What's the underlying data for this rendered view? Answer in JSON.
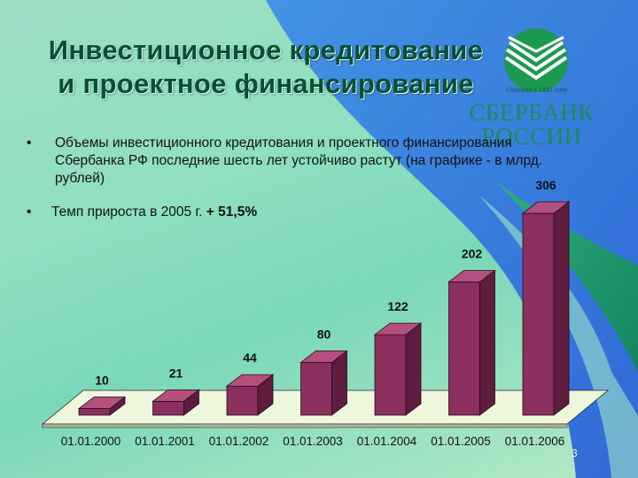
{
  "slide": {
    "title_line1": "Инвестиционное кредитование",
    "title_line2": "и проектное финансирование",
    "page_number": "3",
    "colors": {
      "title": "#0a4f35",
      "accent_blue": "#2d6ee0",
      "bar": "#8a2f5e",
      "bar_side": "#5e1c3f",
      "bar_top": "#b4507f"
    }
  },
  "logo": {
    "tagline": "Основан в 1841 году",
    "name_line1": "СБЕРБАНК",
    "name_line2": "РОССИИ",
    "icon": "sberbank-emblem-icon"
  },
  "bullets": {
    "item1": "Объемы инвестиционного кредитования и проектного финансирования Сбербанка РФ последние шесть лет устойчиво растут (на графике - в млрд. рублей)",
    "item2_prefix": "Темп прироста в 2005 г. ",
    "item2_bold": "+ 51,5%"
  },
  "chart_data": {
    "type": "bar",
    "categories": [
      "01.01.2000",
      "01.01.2001",
      "01.01.2002",
      "01.01.2003",
      "01.01.2004",
      "01.01.2005",
      "01.01.2006"
    ],
    "values": [
      10,
      21,
      44,
      80,
      122,
      202,
      306
    ],
    "title": "",
    "xlabel": "",
    "ylabel": "",
    "ylim": [
      0,
      306
    ],
    "grid": false,
    "legend": "none",
    "style": "3d"
  }
}
